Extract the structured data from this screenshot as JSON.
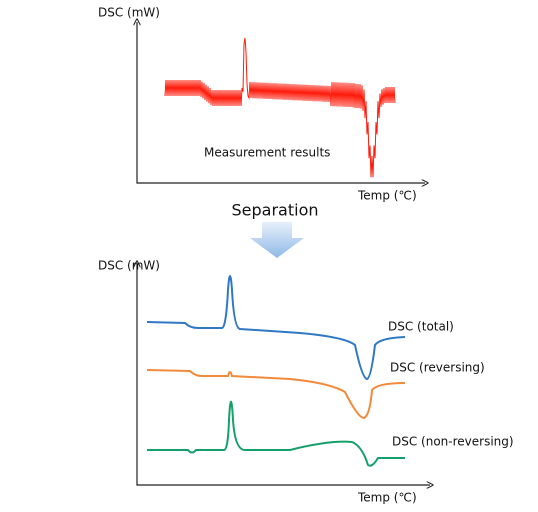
{
  "top_panel": {
    "y_axis_label": "DSC (mW)",
    "annotation": "Measurement results",
    "x_axis_label": "Temp (℃)"
  },
  "arrow_label": "Separation",
  "bottom_panel": {
    "y_axis_label": "DSC (mW)",
    "x_axis_label": "Temp (℃)",
    "curves": [
      {
        "label": "DSC (total)"
      },
      {
        "label": "DSC (reversing)"
      },
      {
        "label": "DSC (non-reversing)"
      }
    ]
  }
}
